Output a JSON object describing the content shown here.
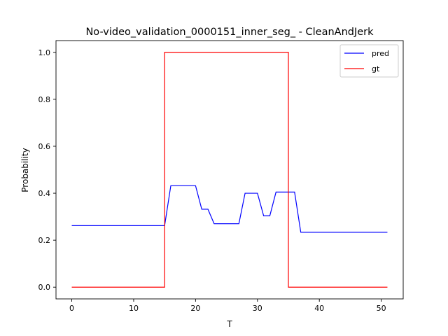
{
  "chart_data": {
    "type": "line",
    "title": "No-video_validation_0000151_inner_seg_ - CleanAndJerk",
    "xlabel": "T",
    "ylabel": "Probability",
    "xlim": [
      -2.55,
      53.55
    ],
    "ylim": [
      -0.05,
      1.05
    ],
    "xticks": [
      0,
      10,
      20,
      30,
      40,
      50
    ],
    "yticks": [
      0.0,
      0.2,
      0.4,
      0.6,
      0.8,
      1.0
    ],
    "xtick_labels": [
      "0",
      "10",
      "20",
      "30",
      "40",
      "50"
    ],
    "ytick_labels": [
      "0.0",
      "0.2",
      "0.4",
      "0.6",
      "0.8",
      "1.0"
    ],
    "grid": false,
    "legend_position": "upper-right",
    "series": [
      {
        "name": "pred",
        "color": "#0000ff",
        "x": [
          0,
          1,
          2,
          3,
          4,
          5,
          6,
          7,
          8,
          9,
          10,
          11,
          12,
          13,
          14,
          15,
          16,
          17,
          18,
          19,
          20,
          21,
          22,
          23,
          24,
          25,
          26,
          27,
          28,
          29,
          30,
          31,
          32,
          33,
          34,
          35,
          36,
          37,
          38,
          39,
          40,
          41,
          42,
          43,
          44,
          45,
          46,
          47,
          48,
          49,
          50,
          51
        ],
        "y": [
          0.262,
          0.262,
          0.262,
          0.262,
          0.262,
          0.262,
          0.262,
          0.262,
          0.262,
          0.262,
          0.262,
          0.262,
          0.262,
          0.262,
          0.262,
          0.262,
          0.432,
          0.432,
          0.432,
          0.432,
          0.432,
          0.332,
          0.332,
          0.27,
          0.27,
          0.27,
          0.27,
          0.27,
          0.4,
          0.4,
          0.4,
          0.304,
          0.304,
          0.405,
          0.405,
          0.405,
          0.405,
          0.234,
          0.234,
          0.234,
          0.234,
          0.234,
          0.234,
          0.234,
          0.234,
          0.234,
          0.234,
          0.234,
          0.234,
          0.234,
          0.234,
          0.234
        ]
      },
      {
        "name": "gt",
        "color": "#ff0000",
        "x": [
          0,
          1,
          2,
          3,
          4,
          5,
          6,
          7,
          8,
          9,
          10,
          11,
          12,
          13,
          14,
          15,
          16,
          17,
          18,
          19,
          20,
          21,
          22,
          23,
          24,
          25,
          26,
          27,
          28,
          29,
          30,
          31,
          32,
          33,
          34,
          35,
          36,
          37,
          38,
          39,
          40,
          41,
          42,
          43,
          44,
          45,
          46,
          47,
          48,
          49,
          50,
          51
        ],
        "y": [
          0,
          0,
          0,
          0,
          0,
          0,
          0,
          0,
          0,
          0,
          0,
          0,
          0,
          0,
          0,
          0,
          1,
          1,
          1,
          1,
          1,
          1,
          1,
          1,
          1,
          1,
          1,
          1,
          1,
          1,
          1,
          1,
          1,
          1,
          1,
          1,
          0,
          0,
          0,
          0,
          0,
          0,
          0,
          0,
          0,
          0,
          0,
          0,
          0,
          0,
          0,
          0
        ],
        "step": "post-shift",
        "gt_segment": [
          15,
          35
        ]
      }
    ]
  }
}
